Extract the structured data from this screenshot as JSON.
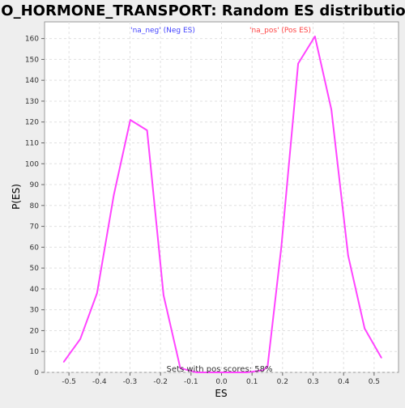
{
  "chart_data": {
    "type": "line",
    "title": "GO_HORMONE_TRANSPORT: Random ES distribution",
    "xlabel": "ES",
    "ylabel": "P(ES)",
    "xlim": [
      -0.58,
      0.58
    ],
    "ylim": [
      0,
      168
    ],
    "x_ticks": [
      -0.5,
      -0.4,
      -0.3,
      -0.2,
      -0.1,
      0.0,
      0.1,
      0.2,
      0.3,
      0.4,
      0.5
    ],
    "x_tick_labels": [
      "-0.5",
      "-0.4",
      "-0.3",
      "-0.2",
      "-0.1",
      "0.0",
      "0.1",
      "0.2",
      "0.3",
      "0.4",
      "0.5"
    ],
    "y_ticks": [
      0,
      10,
      20,
      30,
      40,
      50,
      60,
      70,
      80,
      90,
      100,
      110,
      120,
      130,
      140,
      150,
      160
    ],
    "y_tick_labels": [
      "0",
      "10",
      "20",
      "30",
      "40",
      "50",
      "60",
      "70",
      "80",
      "90",
      "100",
      "110",
      "120",
      "130",
      "140",
      "150",
      "160"
    ],
    "grid": true,
    "series": [
      {
        "color": "#ff44ff",
        "x": [
          -0.517,
          -0.463,
          -0.408,
          -0.353,
          -0.299,
          -0.244,
          -0.19,
          -0.135,
          -0.081,
          -0.026,
          0.028,
          0.083,
          0.137,
          0.151,
          0.196,
          0.251,
          0.306,
          0.36,
          0.415,
          0.469,
          0.524
        ],
        "y": [
          5,
          16,
          38,
          85,
          121,
          116,
          37,
          2,
          0,
          0,
          0,
          0,
          1,
          3,
          60,
          148,
          161,
          126,
          56,
          21,
          7
        ]
      }
    ],
    "annotations": [
      {
        "text": "'na_neg' (Neg ES)",
        "color": "#4444ff"
      },
      {
        "text": "'na_pos' (Pos ES)",
        "color": "#ff4444"
      },
      {
        "text": "Sets with pos scores: 58%",
        "color": "#333333"
      }
    ],
    "colors": {
      "background": "#eeeeee",
      "plot_background": "#ffffff",
      "grid": "#e0e0e0"
    }
  }
}
